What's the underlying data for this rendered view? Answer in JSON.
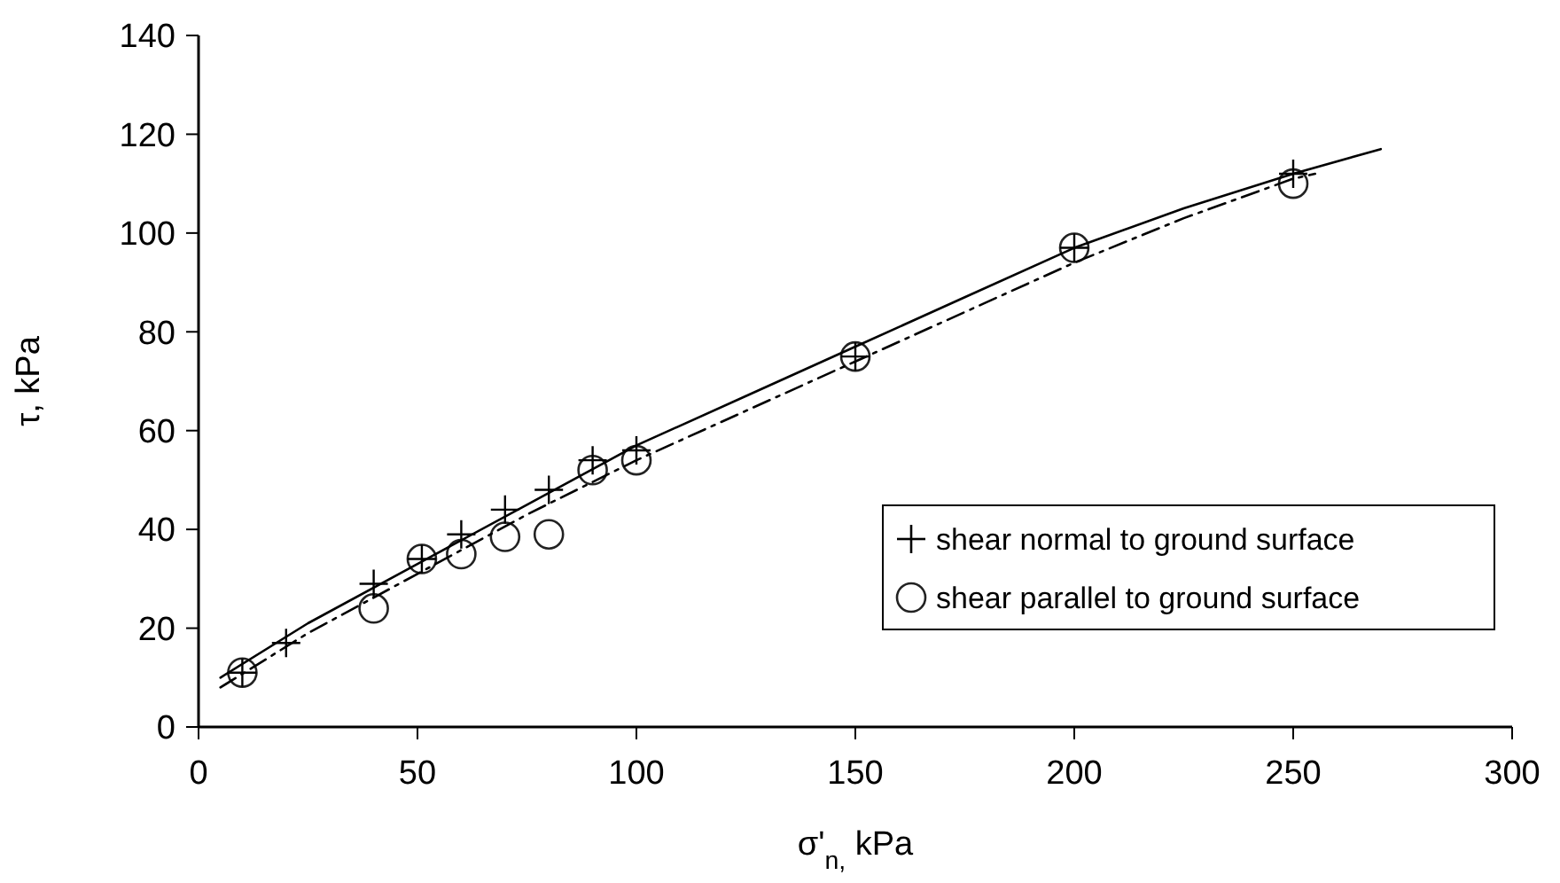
{
  "chart_data": {
    "type": "scatter",
    "xlabel": "σ'$_{n,}$ kPa",
    "ylabel": "τ, kPa",
    "xlim": [
      0,
      300
    ],
    "xticks": [
      0,
      50,
      100,
      150,
      200,
      250,
      300
    ],
    "ylim": [
      0,
      140
    ],
    "yticks": [
      0,
      20,
      40,
      60,
      80,
      100,
      120,
      140
    ],
    "grid": false,
    "legend": "bottom right",
    "series": [
      {
        "type": "line",
        "color": "#000000",
        "marker": "none",
        "line_style": "solid",
        "x": [
          5,
          25,
          50,
          75,
          100,
          125,
          150,
          175,
          200,
          225,
          250,
          270
        ],
        "values": [
          10,
          21,
          33,
          45,
          57,
          67,
          77,
          87,
          97,
          105,
          112,
          117
        ]
      },
      {
        "type": "line",
        "color": "#000000",
        "marker": "none",
        "line_style": "dashed",
        "x": [
          5,
          25,
          50,
          75,
          100,
          125,
          150,
          175,
          200,
          225,
          250,
          255
        ],
        "values": [
          8,
          19,
          31,
          43,
          54,
          64,
          74,
          84,
          94,
          103,
          111,
          112
        ]
      },
      {
        "name": "shear normal to ground surface",
        "color": "#000000",
        "marker": "cross",
        "x": [
          10,
          20,
          40,
          51,
          60,
          70,
          80,
          90,
          100,
          150,
          200,
          250
        ],
        "values": [
          11,
          17,
          29,
          34,
          39,
          44,
          48,
          54,
          56,
          75,
          97,
          112
        ]
      },
      {
        "name": "shear parallel to ground surface",
        "color": "#222222",
        "marker": "circle",
        "x": [
          10,
          40,
          51,
          60,
          70,
          80,
          90,
          100,
          150,
          200,
          250
        ],
        "values": [
          11,
          24,
          34,
          35,
          38.5,
          39,
          52,
          54,
          75,
          97,
          110
        ]
      }
    ]
  }
}
